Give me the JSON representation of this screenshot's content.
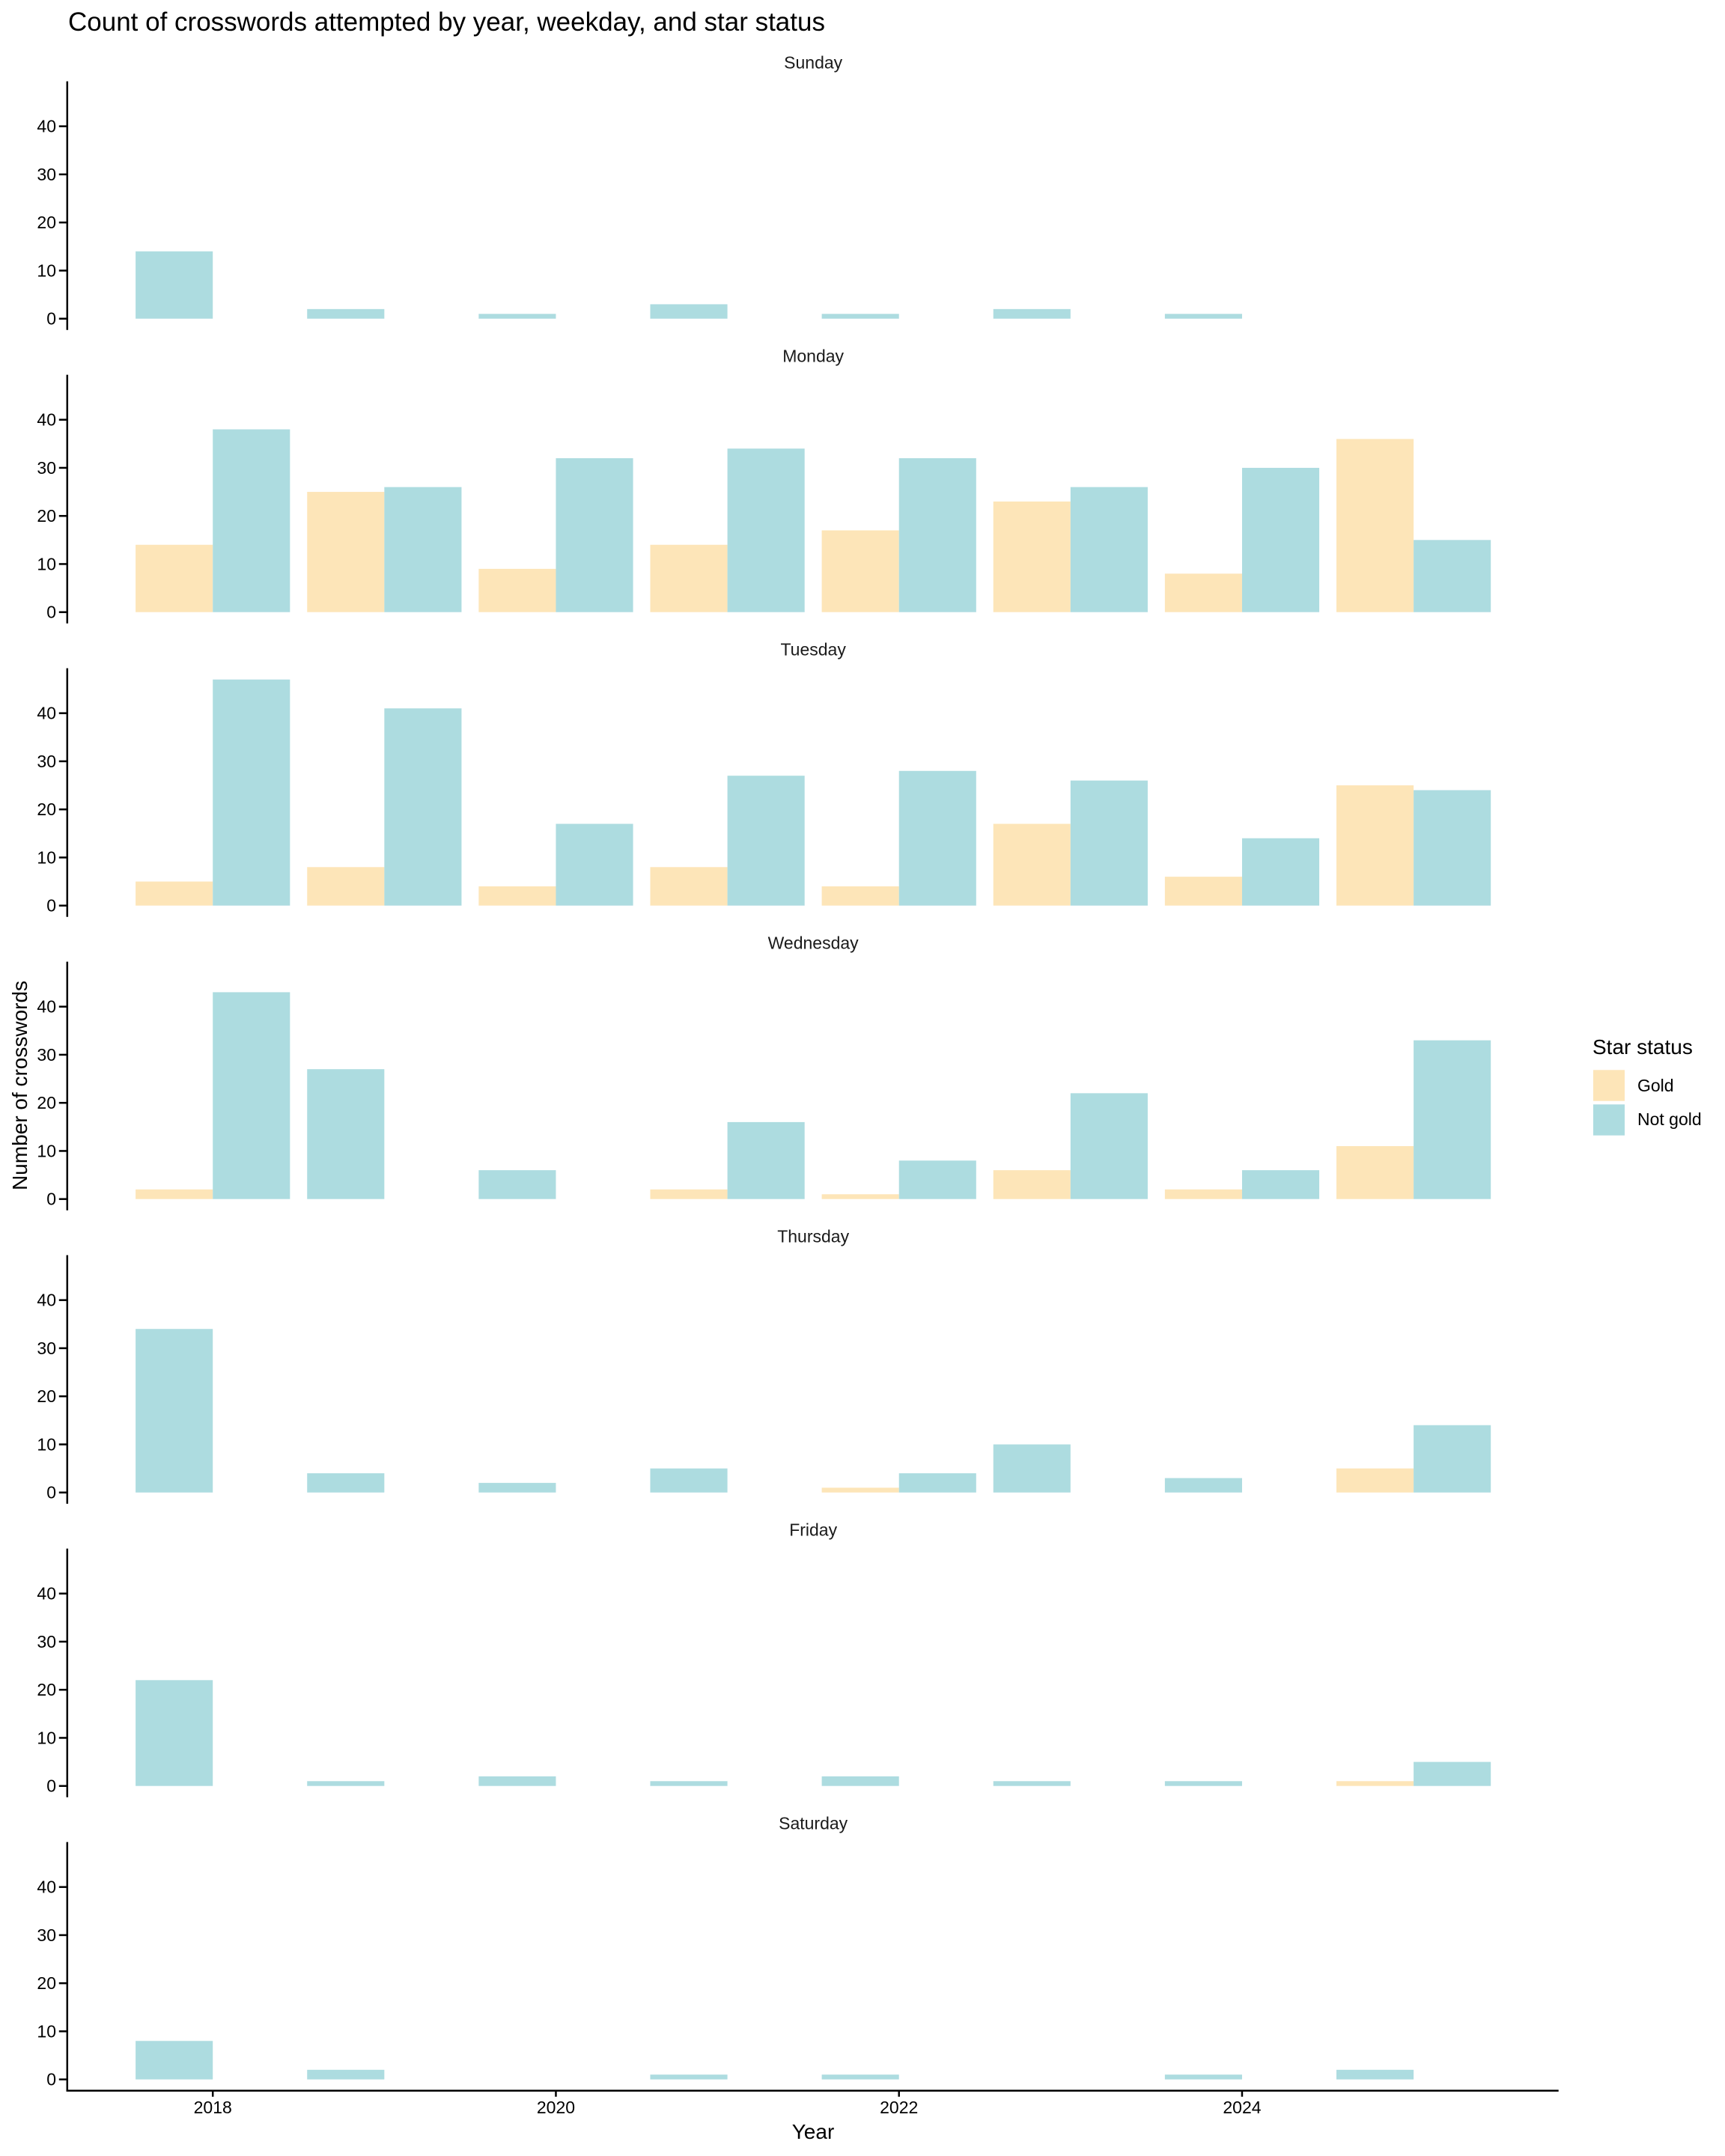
{
  "chart_data": {
    "type": "bar",
    "title": "Count of crosswords attempted by year, weekday, and star status",
    "xlabel": "Year",
    "ylabel": "Number of crosswords",
    "facet_variable": "weekday",
    "bar_position": "dodge",
    "x": [
      2018,
      2019,
      2020,
      2021,
      2022,
      2023,
      2024,
      2025
    ],
    "x_ticks": [
      2018,
      2020,
      2022,
      2024
    ],
    "x_tick_labels": [
      "2018",
      "2020",
      "2022",
      "2024"
    ],
    "y_ticks": [
      0,
      10,
      20,
      30,
      40
    ],
    "y_tick_labels": [
      "0",
      "10",
      "20",
      "30",
      "40"
    ],
    "xlim": [
      2017.155,
      2025.845
    ],
    "ylim": [
      -2.35,
      49.35
    ],
    "grid": false,
    "legend": {
      "title": "Star status",
      "position": "right",
      "entries": [
        {
          "name": "Gold",
          "color": "#FDE5B8"
        },
        {
          "name": "Not gold",
          "color": "#ADDCE0"
        }
      ]
    },
    "panels": [
      {
        "label": "Sunday",
        "series": [
          {
            "name": "Gold",
            "values": [
              null,
              null,
              null,
              null,
              null,
              null,
              null,
              null
            ]
          },
          {
            "name": "Not gold",
            "values": [
              14,
              2,
              1,
              3,
              1,
              2,
              1,
              null
            ]
          }
        ]
      },
      {
        "label": "Monday",
        "series": [
          {
            "name": "Gold",
            "values": [
              14,
              25,
              9,
              14,
              17,
              23,
              8,
              36
            ]
          },
          {
            "name": "Not gold",
            "values": [
              38,
              26,
              32,
              34,
              32,
              26,
              30,
              15
            ]
          }
        ]
      },
      {
        "label": "Tuesday",
        "series": [
          {
            "name": "Gold",
            "values": [
              5,
              8,
              4,
              8,
              4,
              17,
              6,
              25
            ]
          },
          {
            "name": "Not gold",
            "values": [
              47,
              41,
              17,
              27,
              28,
              26,
              14,
              24
            ]
          }
        ]
      },
      {
        "label": "Wednesday",
        "series": [
          {
            "name": "Gold",
            "values": [
              2,
              null,
              null,
              2,
              1,
              6,
              2,
              11
            ]
          },
          {
            "name": "Not gold",
            "values": [
              43,
              27,
              6,
              16,
              8,
              22,
              6,
              33
            ]
          }
        ]
      },
      {
        "label": "Thursday",
        "series": [
          {
            "name": "Gold",
            "values": [
              null,
              null,
              null,
              null,
              1,
              null,
              null,
              5
            ]
          },
          {
            "name": "Not gold",
            "values": [
              34,
              4,
              2,
              5,
              4,
              10,
              3,
              14
            ]
          }
        ]
      },
      {
        "label": "Friday",
        "series": [
          {
            "name": "Gold",
            "values": [
              null,
              null,
              null,
              null,
              null,
              null,
              null,
              1
            ]
          },
          {
            "name": "Not gold",
            "values": [
              22,
              1,
              2,
              1,
              2,
              1,
              1,
              5
            ]
          }
        ]
      },
      {
        "label": "Saturday",
        "series": [
          {
            "name": "Gold",
            "values": [
              null,
              null,
              null,
              null,
              null,
              null,
              null,
              null
            ]
          },
          {
            "name": "Not gold",
            "values": [
              8,
              2,
              null,
              1,
              1,
              null,
              1,
              2
            ]
          }
        ]
      }
    ]
  },
  "colors": {
    "background": "#FFFFFF",
    "axis": "#000000",
    "text": "#000000"
  }
}
